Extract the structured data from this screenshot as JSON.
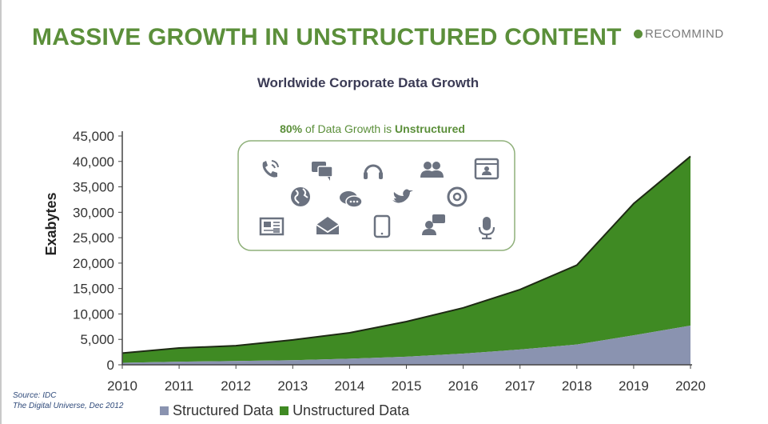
{
  "slide": {
    "title": "MASSIVE GROWTH IN UNSTRUCTURED CONTENT",
    "logo_text": "RECOMMIND",
    "source_line1": "Source: IDC",
    "source_line2": "The Digital Universe, Dec 2012"
  },
  "callout": {
    "percent": "80%",
    "middle": " of Data Growth is ",
    "emphasis": "Unstructured",
    "icons": [
      "phone-icon",
      "chat-bubbles-icon",
      "headset-icon",
      "people-icon",
      "profile-card-icon",
      "globe-icon",
      "speech-bubble-icon",
      "bird-icon",
      "at-sign-icon",
      "newspaper-icon",
      "envelope-icon",
      "tablet-icon",
      "user-chat-icon",
      "microphone-icon"
    ]
  },
  "chart_data": {
    "type": "area",
    "title": "Worldwide Corporate Data Growth",
    "ylabel": "Exabytes",
    "xlabel": "",
    "x": [
      "2010",
      "2011",
      "2012",
      "2013",
      "2014",
      "2015",
      "2016",
      "2017",
      "2018",
      "2019",
      "2020"
    ],
    "ylim": [
      0,
      45000
    ],
    "yticks": [
      0,
      5000,
      10000,
      15000,
      20000,
      25000,
      30000,
      35000,
      40000,
      45000
    ],
    "ytick_labels": [
      "0",
      "5,000",
      "10,000",
      "15,000",
      "20,000",
      "25,000",
      "30,000",
      "35,000",
      "40,000",
      "45,000"
    ],
    "stacked": true,
    "grid": false,
    "legend_position": "bottom",
    "series": [
      {
        "name": "Structured Data",
        "color": "#8a93b0",
        "values": [
          400,
          600,
          750,
          900,
          1200,
          1600,
          2200,
          3000,
          4000,
          5800,
          7700
        ]
      },
      {
        "name": "Unstructured Data",
        "color": "#3f8a23",
        "values": [
          1900,
          2700,
          3000,
          4000,
          5100,
          6900,
          9000,
          11800,
          15600,
          25900,
          33300
        ]
      }
    ]
  }
}
